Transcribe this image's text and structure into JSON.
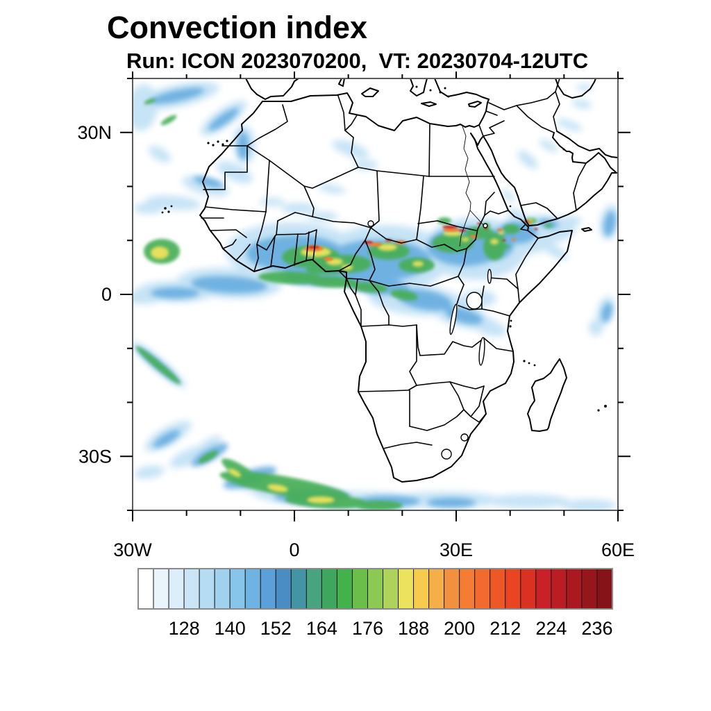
{
  "title": "Convection index",
  "subtitle": "Run: ICON 2023070200,  VT: 20230704-12UTC",
  "map": {
    "x_axis": {
      "major": [
        {
          "label": "30W",
          "deg": -30
        },
        {
          "label": "0",
          "deg": 0
        },
        {
          "label": "30E",
          "deg": 30
        },
        {
          "label": "60E",
          "deg": 60
        }
      ],
      "minor_deg": [
        -20,
        -10,
        10,
        20,
        40,
        50
      ]
    },
    "y_axis": {
      "major": [
        {
          "label": "30N",
          "deg": 30
        },
        {
          "label": "0",
          "deg": 0
        },
        {
          "label": "30S",
          "deg": -30
        }
      ],
      "minor_deg": [
        40,
        20,
        10,
        -10,
        -20,
        -40
      ]
    },
    "lon_range": [
      -30,
      60
    ],
    "lat_range": [
      -40,
      40
    ]
  },
  "colorbar": {
    "start_value": 116,
    "step": 4,
    "n_cells": 31,
    "label_values": [
      128,
      140,
      152,
      164,
      176,
      188,
      200,
      212,
      224,
      236
    ],
    "colors": [
      "#FFFFFF",
      "#EAF4FB",
      "#DCEEF9",
      "#C9E5F6",
      "#B5DCF3",
      "#A0D2EF",
      "#88C5EA",
      "#6EB3E2",
      "#5BA0D8",
      "#4A8CC4",
      "#4295A5",
      "#47A47E",
      "#3FA75D",
      "#43B24A",
      "#6CBE4B",
      "#8BC952",
      "#AED35A",
      "#EDE25D",
      "#F6CB4E",
      "#F4B046",
      "#F19140",
      "#F57D33",
      "#F26A2D",
      "#EE5827",
      "#E94523",
      "#DB3123",
      "#C92128",
      "#BB1D24",
      "#A9191F",
      "#97161C",
      "#851318"
    ]
  },
  "chart_data": {
    "type": "heatmap",
    "title": "Convection index",
    "subtitle": "Run: ICON 2023070200,  VT: 20230704-12UTC",
    "model": "ICON",
    "run": "2023070200",
    "valid_time": "20230704-12UTC",
    "projection": "lat-lon map of Africa, Arabia and adjacent oceans",
    "lon_range": [
      -30,
      60
    ],
    "lat_range": [
      -40,
      40
    ],
    "xticks": [
      "30W",
      "0",
      "30E",
      "60E"
    ],
    "yticks": [
      "30N",
      "0",
      "30S"
    ],
    "grid": false,
    "legend_position": "bottom colorbar",
    "colorbar_levels": [
      116,
      120,
      124,
      128,
      132,
      136,
      140,
      144,
      148,
      152,
      156,
      160,
      164,
      168,
      172,
      176,
      180,
      184,
      188,
      192,
      196,
      200,
      204,
      208,
      212,
      216,
      220,
      224,
      228,
      232,
      236,
      240
    ],
    "colorbar_tick_labels": [
      128,
      140,
      152,
      164,
      176,
      188,
      200,
      212,
      224,
      236
    ],
    "regions": [
      {
        "area": "Sahel / ITCZ band 5N-15N from West Africa across Nigeria, Chad, Sudan to Ethiopia",
        "approx_index": "150-240",
        "note": "green cores with yellow, orange and red convective hotspots"
      },
      {
        "area": "Tropical Atlantic blob west of Guinea (~10N, 25W)",
        "approx_index": "150-200",
        "note": "green with yellow core"
      },
      {
        "area": "Gulf of Guinea coastal band along the equator",
        "approx_index": "140-180"
      },
      {
        "area": "Northeast Atlantic cloud swirl west of Morocco (20-38N)",
        "approx_index": "120-150"
      },
      {
        "area": "South Atlantic frontal band (30-40S) toward Cape",
        "approx_index": "130-200",
        "note": "elongated green/yellow streaks near bottom edge"
      },
      {
        "area": "Ethiopian highlands and Yemen",
        "approx_index": "150-230",
        "note": "speckled green/orange/red cells"
      },
      {
        "area": "Southwest Indian Ocean streaks near right edge",
        "approx_index": "120-140"
      }
    ]
  }
}
